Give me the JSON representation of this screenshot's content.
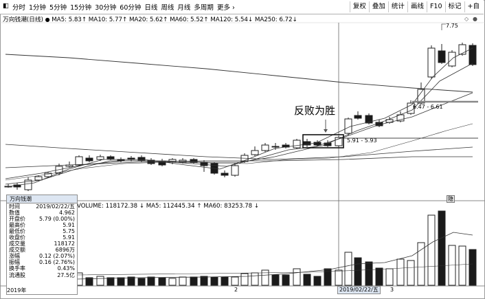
{
  "toolbar": {
    "tabs": [
      "分时",
      "1分钟",
      "5分钟",
      "15分钟",
      "30分钟",
      "60分钟",
      "日线",
      "周线",
      "月线",
      "多周期",
      "更多"
    ],
    "right_buttons": [
      "复权",
      "叠加",
      "统计",
      "画线",
      "F10",
      "标记",
      "+自"
    ]
  },
  "indicator": {
    "stock_label": "万向钱潮(日线)",
    "ma_items": [
      {
        "label": "MA5: 5.83",
        "arrow": "↑"
      },
      {
        "label": "MA10: 5.77",
        "arrow": "↑"
      },
      {
        "label": "MA20: 5.62",
        "arrow": "↑"
      },
      {
        "label": "MA60: 5.52",
        "arrow": "↑"
      },
      {
        "label": "MA120: 5.54",
        "arrow": "↓"
      },
      {
        "label": "MA250: 6.72",
        "arrow": "↓"
      }
    ]
  },
  "annotations": {
    "main_text": "反败为胜",
    "high_label": "7.75",
    "level1_label": "6.47 - 6.61",
    "level2_label": "5.91 - 5.93",
    "marker_icon": "隐"
  },
  "volume": {
    "line": "VOLUME: 118172.38 ↓  MA5: 112445.34 ↑  MA60: 83253.78 ↓"
  },
  "panel": {
    "title": "万向钱潮",
    "rows": [
      {
        "k": "时间",
        "v": "2019/02/22/五"
      },
      {
        "k": "数值",
        "v": "4.962"
      },
      {
        "k": "开盘价",
        "v": "5.79 (0.00%)"
      },
      {
        "k": "最高价",
        "v": "5.91"
      },
      {
        "k": "最低价",
        "v": "5.75"
      },
      {
        "k": "收盘价",
        "v": "5.91"
      },
      {
        "k": "成交量",
        "v": "118172"
      },
      {
        "k": "成交额",
        "v": "6896万"
      },
      {
        "k": "涨幅",
        "v": "0.12 (2.07%)"
      },
      {
        "k": "振幅",
        "v": "0.16 (2.76%)"
      },
      {
        "k": "换手率",
        "v": "0.43%"
      },
      {
        "k": "流通股",
        "v": "27.5亿"
      }
    ]
  },
  "xaxis": {
    "year": "2019年",
    "m2": "2",
    "cursor_date": "2019/02/22/五",
    "m3": "3"
  },
  "colors": {
    "up": "#ffffff",
    "down": "#1a1a1a",
    "ma_line": "#333333"
  }
}
